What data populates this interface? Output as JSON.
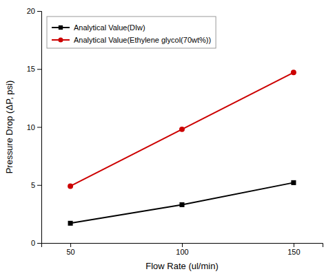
{
  "chart_data": {
    "type": "line",
    "x": [
      50,
      100,
      150
    ],
    "series": [
      {
        "name": "Analytical Value(DIw)",
        "color": "#000000",
        "marker": "square",
        "values": [
          1.7,
          3.3,
          5.2
        ]
      },
      {
        "name": "Analytical Value(Ethylene glycol(70wt%))",
        "color": "#cc0000",
        "marker": "circle",
        "values": [
          4.9,
          9.8,
          14.7
        ]
      }
    ],
    "xlabel": "Flow Rate (ul/min)",
    "ylabel": "Pressure Drop (ΔP, psi)",
    "xlim": [
      37,
      163
    ],
    "xticks": [
      50,
      100,
      150
    ],
    "ylim": [
      0,
      20
    ],
    "yticks": [
      0,
      5,
      10,
      15,
      20
    ],
    "grid": false,
    "legend": "upper left"
  }
}
